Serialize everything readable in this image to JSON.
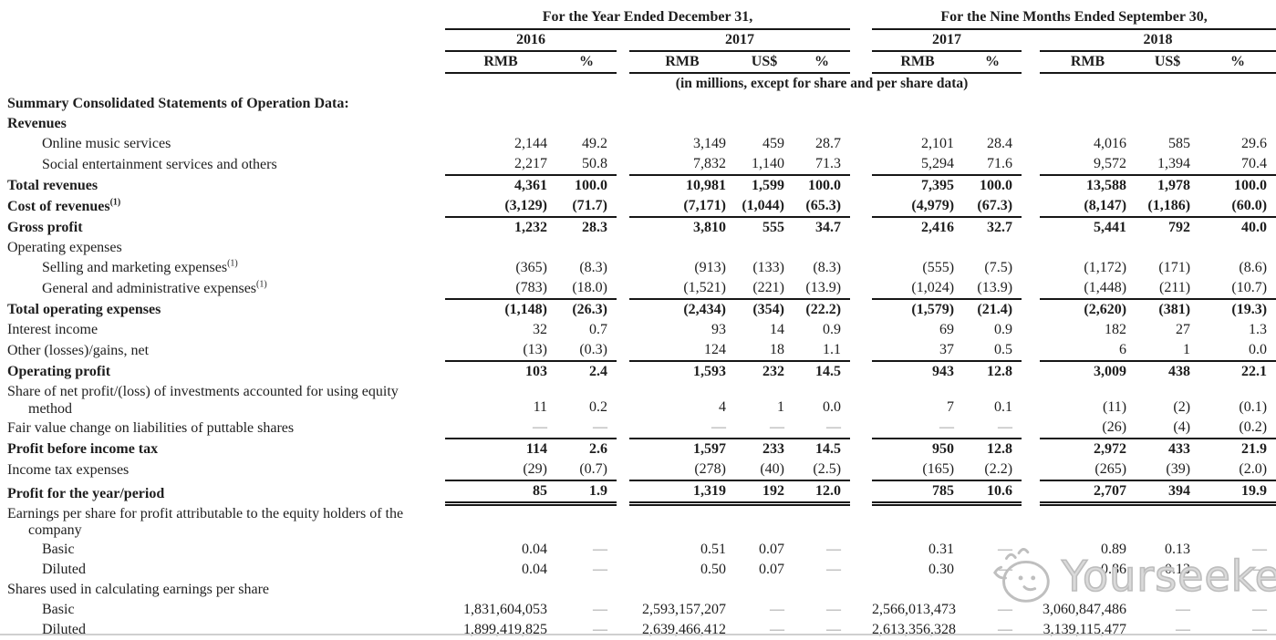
{
  "header": {
    "group1": "For the Year Ended December 31,",
    "group2": "For the Nine Months Ended September 30,",
    "years": [
      "2016",
      "2017",
      "2017",
      "2018"
    ],
    "cols": [
      "RMB",
      "%",
      "RMB",
      "US$",
      "%",
      "RMB",
      "%",
      "RMB",
      "US$",
      "%"
    ],
    "units_note": "(in millions, except for share and per share data)"
  },
  "watermark": {
    "text": "Yourseeker",
    "color": "#bdbdbd"
  },
  "table": {
    "rows": [
      {
        "label": "Summary Consolidated Statements of Operation Data:",
        "b": true
      },
      {
        "label": "Revenues",
        "b": true
      },
      {
        "label": "Online music services",
        "ind": true,
        "values": [
          "2,144",
          "49.2",
          "3,149",
          "459",
          "28.7",
          "2,101",
          "28.4",
          "4,016",
          "585",
          "29.6"
        ]
      },
      {
        "label": "Social entertainment services and others",
        "ind": true,
        "ul": true,
        "values": [
          "2,217",
          "50.8",
          "7,832",
          "1,140",
          "71.3",
          "5,294",
          "71.6",
          "9,572",
          "1,394",
          "70.4"
        ]
      },
      {
        "label": "Total revenues",
        "b": true,
        "vb": true,
        "values": [
          "4,361",
          "100.0",
          "10,981",
          "1,599",
          "100.0",
          "7,395",
          "100.0",
          "13,588",
          "1,978",
          "100.0"
        ]
      },
      {
        "label": "Cost of revenues",
        "sup": "(1)",
        "b": true,
        "vb": true,
        "ul": true,
        "values": [
          "(3,129)",
          "(71.7)",
          "(7,171)",
          "(1,044)",
          "(65.3)",
          "(4,979)",
          "(67.3)",
          "(8,147)",
          "(1,186)",
          "(60.0)"
        ]
      },
      {
        "label": "Gross profit",
        "b": true,
        "vb": true,
        "values": [
          "1,232",
          "28.3",
          "3,810",
          "555",
          "34.7",
          "2,416",
          "32.7",
          "5,441",
          "792",
          "40.0"
        ]
      },
      {
        "label": "Operating expenses"
      },
      {
        "label": "Selling and marketing expenses",
        "sup": "(1)",
        "ind": true,
        "values": [
          "(365)",
          "(8.3)",
          "(913)",
          "(133)",
          "(8.3)",
          "(555)",
          "(7.5)",
          "(1,172)",
          "(171)",
          "(8.6)"
        ]
      },
      {
        "label": "General and administrative expenses",
        "sup": "(1)",
        "ind": true,
        "ul": true,
        "values": [
          "(783)",
          "(18.0)",
          "(1,521)",
          "(221)",
          "(13.9)",
          "(1,024)",
          "(13.9)",
          "(1,448)",
          "(211)",
          "(10.7)"
        ]
      },
      {
        "label": "Total operating expenses",
        "b": true,
        "vb": true,
        "values": [
          "(1,148)",
          "(26.3)",
          "(2,434)",
          "(354)",
          "(22.2)",
          "(1,579)",
          "(21.4)",
          "(2,620)",
          "(381)",
          "(19.3)"
        ]
      },
      {
        "label": "Interest income",
        "values": [
          "32",
          "0.7",
          "93",
          "14",
          "0.9",
          "69",
          "0.9",
          "182",
          "27",
          "1.3"
        ]
      },
      {
        "label": "Other (losses)/gains, net",
        "ul": true,
        "values": [
          "(13)",
          "(0.3)",
          "124",
          "18",
          "1.1",
          "37",
          "0.5",
          "6",
          "1",
          "0.0"
        ]
      },
      {
        "label": "Operating profit",
        "b": true,
        "vb": true,
        "values": [
          "103",
          "2.4",
          "1,593",
          "232",
          "14.5",
          "943",
          "12.8",
          "3,009",
          "438",
          "22.1"
        ]
      },
      {
        "label": "Share of net profit/(loss) of investments accounted for using equity method",
        "wrap": true,
        "values": [
          "11",
          "0.2",
          "4",
          "1",
          "0.0",
          "7",
          "0.1",
          "(11)",
          "(2)",
          "(0.1)"
        ]
      },
      {
        "label": "Fair value change on liabilities of puttable shares",
        "ul": true,
        "values": [
          "—",
          "—",
          "—",
          "—",
          "—",
          "—",
          "—",
          "(26)",
          "(4)",
          "(0.2)"
        ]
      },
      {
        "label": "Profit before income tax",
        "b": true,
        "vb": true,
        "values": [
          "114",
          "2.6",
          "1,597",
          "233",
          "14.5",
          "950",
          "12.8",
          "2,972",
          "433",
          "21.9"
        ]
      },
      {
        "label": "Income tax expenses",
        "ul": true,
        "values": [
          "(29)",
          "(0.7)",
          "(278)",
          "(40)",
          "(2.5)",
          "(165)",
          "(2.2)",
          "(265)",
          "(39)",
          "(2.0)"
        ]
      },
      {
        "label": "Profit for the year/period",
        "b": true,
        "vb": true,
        "dul": true,
        "values": [
          "85",
          "1.9",
          "1,319",
          "192",
          "12.0",
          "785",
          "10.6",
          "2,707",
          "394",
          "19.9"
        ]
      },
      {
        "label": "Earnings per share for profit attributable to the equity holders of the company",
        "wrap": true,
        "gap": true
      },
      {
        "label": "Basic",
        "ind": true,
        "values": [
          "0.04",
          "—",
          "0.51",
          "0.07",
          "—",
          "0.31",
          "—",
          "0.89",
          "0.13",
          "—"
        ]
      },
      {
        "label": "Diluted",
        "ind": true,
        "values": [
          "0.04",
          "—",
          "0.50",
          "0.07",
          "—",
          "0.30",
          "—",
          "0.86",
          "0.13",
          "—"
        ]
      },
      {
        "label": "Shares used in calculating earnings per share",
        "values": [
          "",
          "",
          "",
          "",
          "",
          "",
          "",
          "",
          "",
          ""
        ]
      },
      {
        "label": "Basic",
        "ind": true,
        "values": [
          "1,831,604,053",
          "—",
          "2,593,157,207",
          "—",
          "—",
          "2,566,013,473",
          "—",
          "3,060,847,486",
          "—",
          "—"
        ]
      },
      {
        "label": "Diluted",
        "ind": true,
        "values": [
          "1,899,419,825",
          "—",
          "2,639,466,412",
          "—",
          "—",
          "2,613,356,328",
          "—",
          "3,139,115,477",
          "—",
          "—"
        ]
      }
    ]
  }
}
